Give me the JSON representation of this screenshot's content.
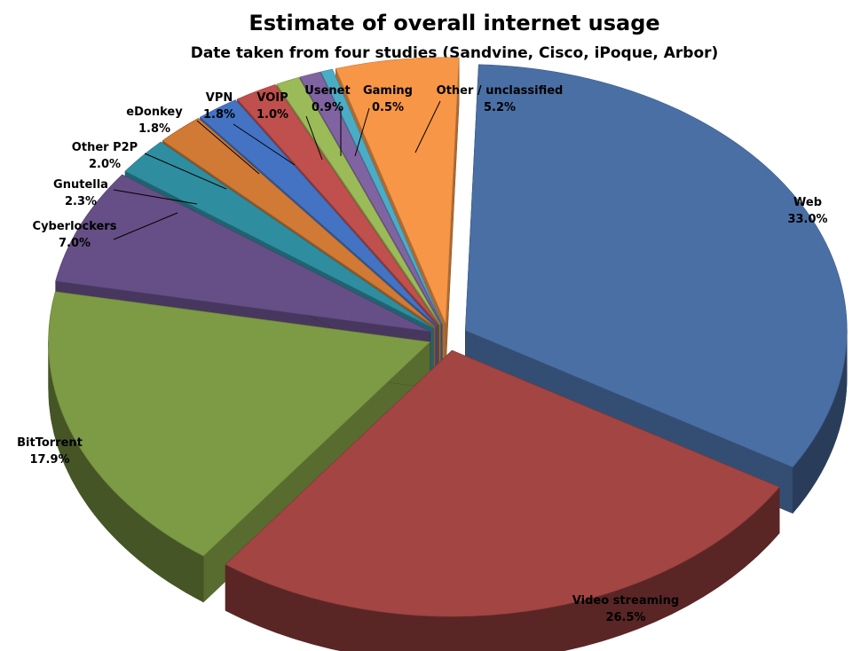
{
  "chart_data": {
    "type": "pie",
    "variant": "3d-exploded",
    "title": "Estimate of overall internet usage",
    "subtitle": "Date taken from four studies (Sandvine, Cisco, iPoque, Arbor)",
    "unit": "%",
    "slices": [
      {
        "label": "Web",
        "value": 33.0,
        "value_label": "33.0%",
        "color": "#4A6FA5"
      },
      {
        "label": "Video streaming",
        "value": 26.5,
        "value_label": "26.5%",
        "color": "#A24543"
      },
      {
        "label": "BitTorrent",
        "value": 17.9,
        "value_label": "17.9%",
        "color": "#7D9A44"
      },
      {
        "label": "Cyberlockers",
        "value": 7.0,
        "value_label": "7.0%",
        "color": "#654F86"
      },
      {
        "label": "Gnutella",
        "value": 2.3,
        "value_label": "2.3%",
        "color": "#2E8EA0"
      },
      {
        "label": "Other P2P",
        "value": 2.0,
        "value_label": "2.0%",
        "color": "#D07A35"
      },
      {
        "label": "eDonkey",
        "value": 1.8,
        "value_label": "1.8%",
        "color": "#4473C4"
      },
      {
        "label": "VPN",
        "value": 1.8,
        "value_label": "1.8%",
        "color": "#C0504D"
      },
      {
        "label": "VOIP",
        "value": 1.0,
        "value_label": "1.0%",
        "color": "#9BBB59"
      },
      {
        "label": "Usenet",
        "value": 0.9,
        "value_label": "0.9%",
        "color": "#8064A2"
      },
      {
        "label": "Gaming",
        "value": 0.5,
        "value_label": "0.5%",
        "color": "#4BACC6"
      },
      {
        "label": "Other / unclassified",
        "value": 5.2,
        "value_label": "5.2%",
        "color": "#F79646"
      }
    ]
  }
}
